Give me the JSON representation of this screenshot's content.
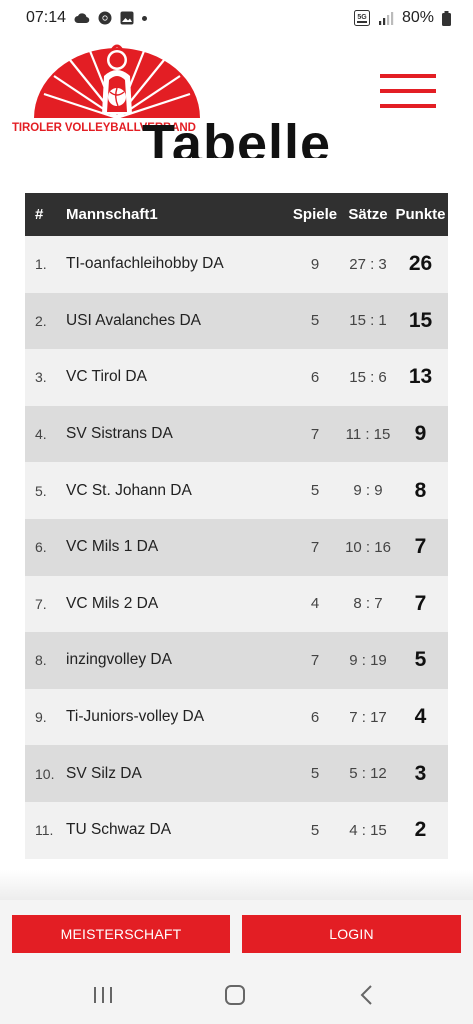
{
  "status_bar": {
    "time": "07:14",
    "network": "5G",
    "battery": "80%"
  },
  "header": {
    "logo_text": "TIROLER VOLLEYBALLVERBAND"
  },
  "page": {
    "title": "Tabelle"
  },
  "table": {
    "columns": {
      "rank": "#",
      "team": "Mannschaft1",
      "games": "Spiele",
      "sets": "Sätze",
      "points": "Punkte"
    },
    "rows": [
      {
        "rank": "1.",
        "team": "TI-oanfachleihobby DA",
        "games": "9",
        "sets": "27 : 3",
        "points": "26"
      },
      {
        "rank": "2.",
        "team": "USI Avalanches DA",
        "games": "5",
        "sets": "15 : 1",
        "points": "15"
      },
      {
        "rank": "3.",
        "team": "VC Tirol DA",
        "games": "6",
        "sets": "15 : 6",
        "points": "13"
      },
      {
        "rank": "4.",
        "team": "SV Sistrans DA",
        "games": "7",
        "sets": "11 : 15",
        "points": "9"
      },
      {
        "rank": "5.",
        "team": "VC St. Johann DA",
        "games": "5",
        "sets": "9 : 9",
        "points": "8"
      },
      {
        "rank": "6.",
        "team": "VC Mils 1 DA",
        "games": "7",
        "sets": "10 : 16",
        "points": "7"
      },
      {
        "rank": "7.",
        "team": "VC Mils 2 DA",
        "games": "4",
        "sets": "8 : 7",
        "points": "7"
      },
      {
        "rank": "8.",
        "team": "inzingvolley DA",
        "games": "7",
        "sets": "9 : 19",
        "points": "5"
      },
      {
        "rank": "9.",
        "team": "Ti-Juniors-volley DA",
        "games": "6",
        "sets": "7 : 17",
        "points": "4"
      },
      {
        "rank": "10.",
        "team": "SV Silz DA",
        "games": "5",
        "sets": "5 : 12",
        "points": "3"
      },
      {
        "rank": "11.",
        "team": "TU Schwaz DA",
        "games": "5",
        "sets": "4 : 15",
        "points": "2"
      }
    ]
  },
  "bottom_buttons": {
    "left_label": "MEISTERSCHAFT",
    "right_label": "LOGIN"
  },
  "colors": {
    "brand_red": "#e31e24",
    "table_header": "#303030"
  }
}
